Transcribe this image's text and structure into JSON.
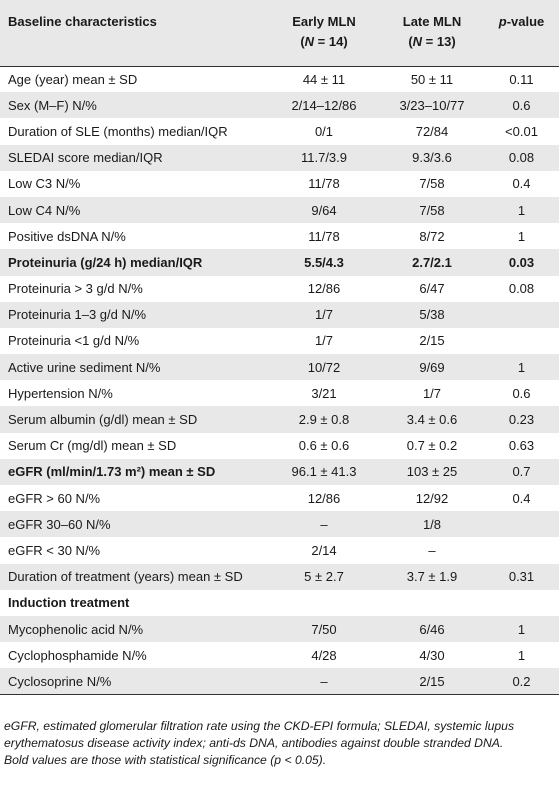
{
  "table": {
    "headers": {
      "col0": "Baseline characteristics",
      "col1": "Early MLN\n(N = 14)",
      "col2": "Late MLN\n(N = 13)",
      "col3": "p-value"
    },
    "rows": [
      {
        "label": "Age (year) mean ± SD",
        "early": "44 ± 11",
        "late": "50 ± 11",
        "p": "0.11",
        "bold": false
      },
      {
        "label": "Sex (M–F) N/%",
        "early": "2/14–12/86",
        "late": "3/23–10/77",
        "p": "0.6",
        "bold": false
      },
      {
        "label": "Duration of SLE (months) median/IQR",
        "early": "0/1",
        "late": "72/84",
        "p": "<0.01",
        "bold": false
      },
      {
        "label": "SLEDAI score median/IQR",
        "early": "11.7/3.9",
        "late": "9.3/3.6",
        "p": "0.08",
        "bold": false
      },
      {
        "label": "Low C3 N/%",
        "early": "11/78",
        "late": "7/58",
        "p": "0.4",
        "bold": false
      },
      {
        "label": "Low C4 N/%",
        "early": "9/64",
        "late": "7/58",
        "p": "1",
        "bold": false
      },
      {
        "label": "Positive dsDNA N/%",
        "early": "11/78",
        "late": "8/72",
        "p": "1",
        "bold": false
      },
      {
        "label": "Proteinuria (g/24 h) median/IQR",
        "early": "5.5/4.3",
        "late": "2.7/2.1",
        "p": "0.03",
        "bold": true
      },
      {
        "label": "Proteinuria > 3 g/d N/%",
        "early": "12/86",
        "late": "6/47",
        "p": "0.08",
        "bold": false
      },
      {
        "label": "Proteinuria 1–3 g/d N/%",
        "early": "1/7",
        "late": "5/38",
        "p": "",
        "bold": false
      },
      {
        "label": "Proteinuria <1 g/d N/%",
        "early": "1/7",
        "late": "2/15",
        "p": "",
        "bold": false
      },
      {
        "label": "Active urine sediment N/%",
        "early": "10/72",
        "late": "9/69",
        "p": "1",
        "bold": false
      },
      {
        "label": "Hypertension N/%",
        "early": "3/21",
        "late": "1/7",
        "p": "0.6",
        "bold": false
      },
      {
        "label": "Serum albumin (g/dl) mean ± SD",
        "early": "2.9 ± 0.8",
        "late": "3.4 ± 0.6",
        "p": "0.23",
        "bold": false
      },
      {
        "label": "Serum Cr (mg/dl) mean ± SD",
        "early": "0.6 ± 0.6",
        "late": "0.7 ± 0.2",
        "p": "0.63",
        "bold": false
      },
      {
        "label": "eGFR (ml/min/1.73 m²) mean ± SD",
        "early": "96.1 ± 41.3",
        "late": "103 ± 25",
        "p": "0.7",
        "bold": false,
        "label_bold": true
      },
      {
        "label": "eGFR > 60 N/%",
        "early": "12/86",
        "late": "12/92",
        "p": "0.4",
        "bold": false
      },
      {
        "label": "eGFR 30–60 N/%",
        "early": "–",
        "late": "1/8",
        "p": "",
        "bold": false
      },
      {
        "label": "eGFR < 30 N/%",
        "early": "2/14",
        "late": "–",
        "p": "",
        "bold": false
      },
      {
        "label": "Duration of treatment (years) mean ± SD",
        "early": "5 ± 2.7",
        "late": "3.7 ± 1.9",
        "p": "0.31",
        "bold": false
      },
      {
        "label": "Induction treatment",
        "early": "",
        "late": "",
        "p": "",
        "bold": false,
        "label_bold": true
      },
      {
        "label": "Mycophenolic acid N/%",
        "early": "7/50",
        "late": "6/46",
        "p": "1",
        "bold": false
      },
      {
        "label": "Cyclophosphamide N/%",
        "early": "4/28",
        "late": "4/30",
        "p": "1",
        "bold": false
      },
      {
        "label": "Cyclosoprine N/%",
        "early": "–",
        "late": "2/15",
        "p": "0.2",
        "bold": false
      }
    ]
  },
  "footnotes": {
    "abbrev": "eGFR, estimated glomerular filtration rate using the CKD-EPI formula; SLEDAI, systemic lupus erythematosus disease activity index; anti-ds DNA, antibodies against double stranded DNA.",
    "bold_note": "Bold values are those with statistical significance (p < 0.05)."
  }
}
